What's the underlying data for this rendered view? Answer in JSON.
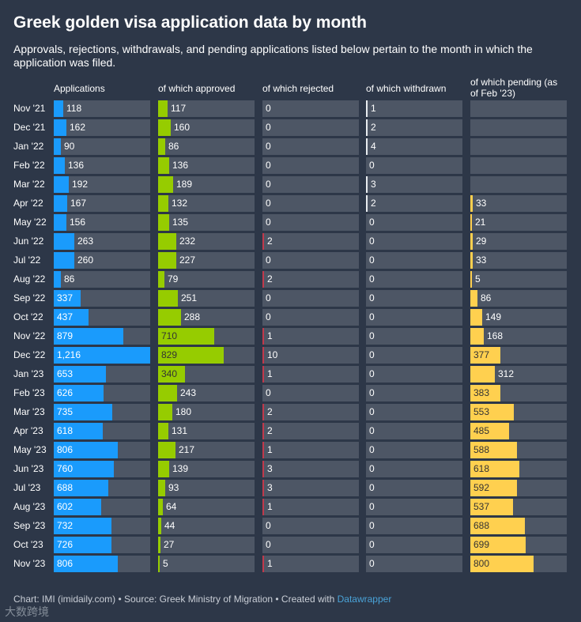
{
  "title": "Greek golden visa application data by month",
  "subtitle": "Approvals, rejections, withdrawals, and pending applications listed below pertain to the month in which the application was filed.",
  "footer": {
    "text": "Chart: IMI (imidaily.com) • Source: Greek Ministry of Migration • Created with ",
    "link": "Datawrapper"
  },
  "watermark": "大数跨境",
  "chart_data": {
    "type": "table",
    "columns": [
      {
        "key": "applications",
        "label": "Applications",
        "color": "#1a9bfc"
      },
      {
        "key": "approved",
        "label": "of which approved",
        "color": "#96cc00"
      },
      {
        "key": "rejected",
        "label": "of which rejected",
        "color": "#c0394b"
      },
      {
        "key": "withdrawn",
        "label": "of which withdrawn",
        "color": "#e8ecf0"
      },
      {
        "key": "pending",
        "label": "of which pending (as of Feb '23)",
        "color": "#ffd04f"
      }
    ],
    "scale_max": 1216,
    "rows": [
      {
        "month": "Nov '21",
        "values": [
          118,
          117,
          0,
          1,
          null
        ]
      },
      {
        "month": "Dec '21",
        "values": [
          162,
          160,
          0,
          2,
          null
        ]
      },
      {
        "month": "Jan '22",
        "values": [
          90,
          86,
          0,
          4,
          null
        ]
      },
      {
        "month": "Feb '22",
        "values": [
          136,
          136,
          0,
          0,
          null
        ]
      },
      {
        "month": "Mar '22",
        "values": [
          192,
          189,
          0,
          3,
          null
        ]
      },
      {
        "month": "Apr '22",
        "values": [
          167,
          132,
          0,
          2,
          33
        ]
      },
      {
        "month": "May '22",
        "values": [
          156,
          135,
          0,
          0,
          21
        ]
      },
      {
        "month": "Jun '22",
        "values": [
          263,
          232,
          2,
          0,
          29
        ]
      },
      {
        "month": "Jul '22",
        "values": [
          260,
          227,
          0,
          0,
          33
        ]
      },
      {
        "month": "Aug '22",
        "values": [
          86,
          79,
          2,
          0,
          5
        ]
      },
      {
        "month": "Sep '22",
        "values": [
          337,
          251,
          0,
          0,
          86
        ]
      },
      {
        "month": "Oct '22",
        "values": [
          437,
          288,
          0,
          0,
          149
        ]
      },
      {
        "month": "Nov '22",
        "values": [
          879,
          710,
          1,
          0,
          168
        ]
      },
      {
        "month": "Dec '22",
        "values": [
          1216,
          829,
          10,
          0,
          377
        ]
      },
      {
        "month": "Jan '23",
        "values": [
          653,
          340,
          1,
          0,
          312
        ]
      },
      {
        "month": "Feb '23",
        "values": [
          626,
          243,
          0,
          0,
          383
        ]
      },
      {
        "month": "Mar '23",
        "values": [
          735,
          180,
          2,
          0,
          553
        ]
      },
      {
        "month": "Apr '23",
        "values": [
          618,
          131,
          2,
          0,
          485
        ]
      },
      {
        "month": "May '23",
        "values": [
          806,
          217,
          1,
          0,
          588
        ]
      },
      {
        "month": "Jun '23",
        "values": [
          760,
          139,
          3,
          0,
          618
        ]
      },
      {
        "month": "Jul '23",
        "values": [
          688,
          93,
          3,
          0,
          592
        ]
      },
      {
        "month": "Aug '23",
        "values": [
          602,
          64,
          1,
          0,
          537
        ]
      },
      {
        "month": "Sep '23",
        "values": [
          732,
          44,
          0,
          0,
          688
        ]
      },
      {
        "month": "Oct '23",
        "values": [
          726,
          27,
          0,
          0,
          699
        ]
      },
      {
        "month": "Nov '23",
        "values": [
          806,
          5,
          1,
          0,
          800
        ]
      }
    ]
  }
}
